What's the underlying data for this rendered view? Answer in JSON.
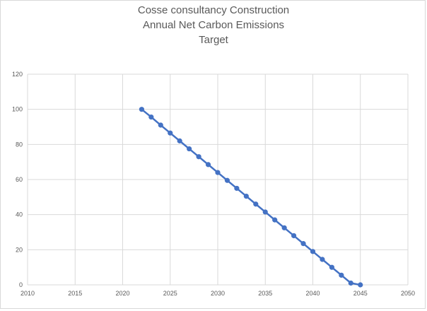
{
  "chart_data": {
    "type": "line",
    "title_lines": [
      "Cosse consultancy Construction",
      "Annual Net Carbon Emissions",
      "Target"
    ],
    "xlabel": "",
    "ylabel": "",
    "xlim": [
      2010,
      2050
    ],
    "ylim": [
      0,
      120
    ],
    "x_ticks": [
      2010,
      2015,
      2020,
      2025,
      2030,
      2035,
      2040,
      2045,
      2050
    ],
    "y_ticks": [
      0,
      20,
      40,
      60,
      80,
      100,
      120
    ],
    "grid": true,
    "legend": "none",
    "series": [
      {
        "color": "#4472c4",
        "x": [
          2022,
          2023,
          2024,
          2025,
          2026,
          2027,
          2028,
          2029,
          2030,
          2031,
          2032,
          2033,
          2034,
          2035,
          2036,
          2037,
          2038,
          2039,
          2040,
          2041,
          2042,
          2043,
          2044,
          2045
        ],
        "y": [
          100,
          95.6,
          91,
          86.5,
          82,
          77.5,
          73,
          68.5,
          64,
          59.5,
          55,
          50.5,
          46,
          41.5,
          37,
          32.5,
          28,
          23.5,
          19,
          14.5,
          10,
          5.5,
          1,
          0
        ]
      }
    ]
  }
}
